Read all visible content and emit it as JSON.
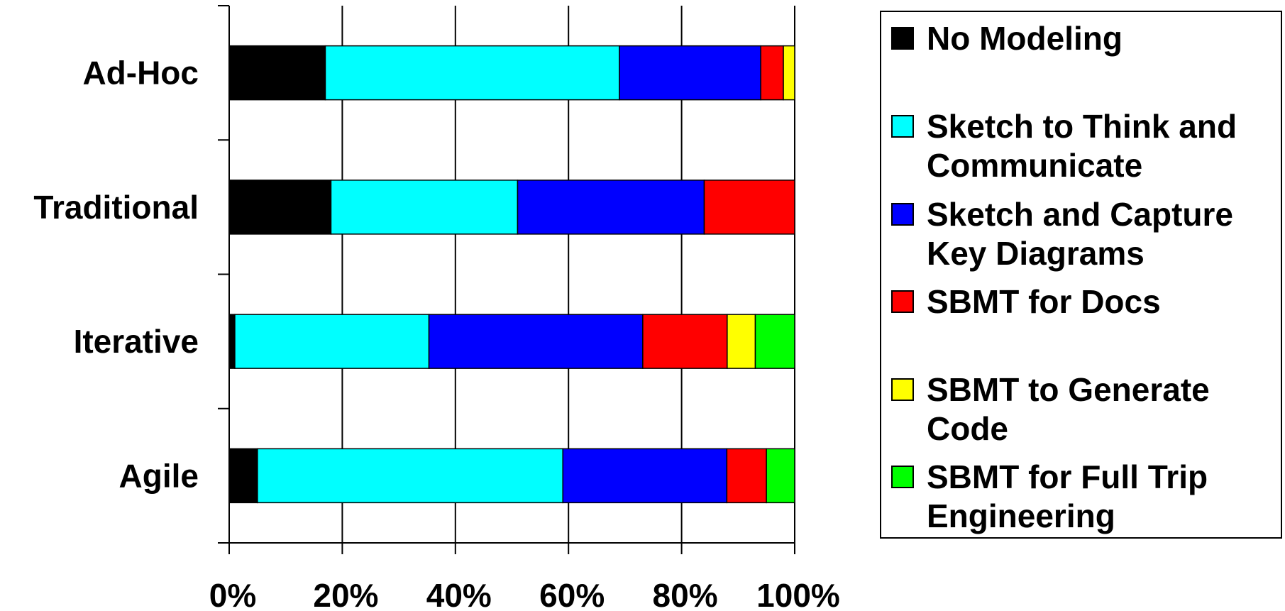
{
  "chart_data": {
    "type": "bar",
    "orientation": "horizontal",
    "stacked": "percent",
    "categories": [
      "Ad-Hoc",
      "Traditional",
      "Iterative",
      "Agile"
    ],
    "series": [
      {
        "name": "No Modeling",
        "color": "#000000",
        "values": [
          17,
          18,
          1,
          5
        ]
      },
      {
        "name": "Sketch to Think and Communicate",
        "color": "#00FFFF",
        "values": [
          52,
          33,
          34.5,
          54
        ]
      },
      {
        "name": "Sketch and Capture Key Diagrams",
        "color": "#0000FF",
        "values": [
          25,
          33,
          38,
          29
        ]
      },
      {
        "name": "SBMT for Docs",
        "color": "#FF0000",
        "values": [
          4,
          16,
          15,
          7
        ]
      },
      {
        "name": "SBMT to Generate Code",
        "color": "#FFFF00",
        "values": [
          2,
          0,
          5,
          0
        ]
      },
      {
        "name": "SBMT for Full Trip Engineering",
        "color": "#00FF00",
        "values": [
          0,
          0,
          7,
          5
        ]
      }
    ],
    "legend_labels": [
      [
        "No Modeling"
      ],
      [
        "Sketch to Think and",
        "Communicate"
      ],
      [
        "Sketch and Capture",
        "Key Diagrams"
      ],
      [
        "SBMT for Docs"
      ],
      [
        "SBMT to Generate",
        "Code"
      ],
      [
        "SBMT for Full Trip",
        "Engineering"
      ]
    ],
    "x_ticks": [
      "0%",
      "20%",
      "40%",
      "60%",
      "80%",
      "100%"
    ],
    "xlim": [
      0,
      100
    ],
    "grid": "vertical",
    "legend_position": "right"
  }
}
